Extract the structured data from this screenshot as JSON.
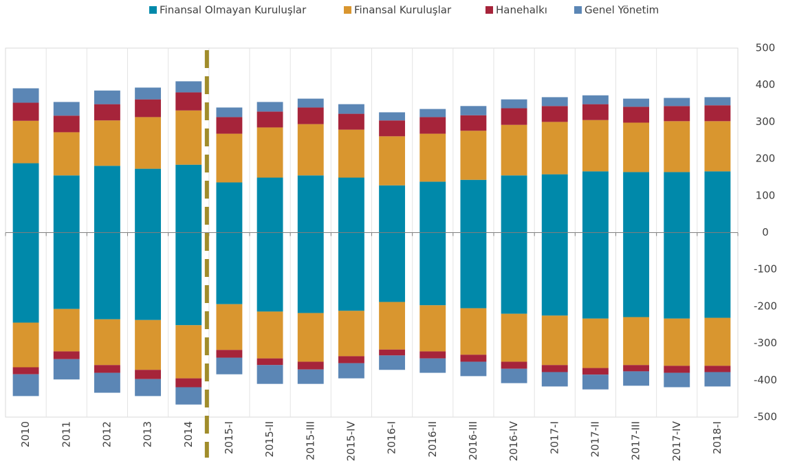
{
  "chart_data": {
    "type": "bar",
    "stacked": true,
    "categories": [
      "2010",
      "2011",
      "2012",
      "2013",
      "2014",
      "2015-I",
      "2015-II",
      "2015-III",
      "2015-IV",
      "2016-I",
      "2016-II",
      "2016-III",
      "2016-IV",
      "2017-I",
      "2017-II",
      "2017-III",
      "2017-IV",
      "2018-I"
    ],
    "series": [
      {
        "name": "Finansal Olmayan Kuruluşlar",
        "color": "#0089aa",
        "values": [
          188,
          155,
          181,
          173,
          184,
          136,
          149,
          155,
          149,
          128,
          138,
          143,
          155,
          158,
          166,
          164,
          164,
          166
        ],
        "negative_values": [
          -244,
          -207,
          -235,
          -237,
          -251,
          -194,
          -214,
          -218,
          -212,
          -188,
          -197,
          -205,
          -220,
          -225,
          -233,
          -229,
          -233,
          -231
        ]
      },
      {
        "name": "Finansal Kuruluşlar",
        "color": "#d9962f",
        "values": [
          115,
          117,
          123,
          140,
          147,
          132,
          136,
          139,
          130,
          133,
          130,
          133,
          137,
          142,
          139,
          134,
          138,
          136
        ],
        "negative_values": [
          -121,
          -115,
          -124,
          -135,
          -144,
          -124,
          -127,
          -132,
          -123,
          -129,
          -125,
          -126,
          -130,
          -134,
          -134,
          -130,
          -128,
          -130
        ]
      },
      {
        "name": "Hanehalkı",
        "color": "#a6243a",
        "values": [
          49,
          45,
          44,
          48,
          49,
          45,
          43,
          45,
          43,
          43,
          45,
          42,
          45,
          43,
          43,
          43,
          41,
          43
        ],
        "negative_values": [
          -19,
          -21,
          -21,
          -25,
          -24,
          -21,
          -18,
          -21,
          -19,
          -16,
          -19,
          -19,
          -19,
          -19,
          -18,
          -17,
          -19,
          -17
        ]
      },
      {
        "name": "Genel Yönetim",
        "color": "#5b86b5",
        "values": [
          39,
          37,
          37,
          32,
          30,
          26,
          26,
          24,
          26,
          22,
          22,
          25,
          24,
          24,
          24,
          22,
          22,
          22
        ],
        "negative_values": [
          -59,
          -55,
          -54,
          -46,
          -47,
          -45,
          -51,
          -39,
          -41,
          -39,
          -39,
          -39,
          -39,
          -39,
          -40,
          -39,
          -39,
          -39
        ]
      }
    ],
    "ylim": [
      -500,
      500
    ],
    "yticks": [
      -500,
      -400,
      -300,
      -200,
      -100,
      0,
      100,
      200,
      300,
      400,
      500
    ],
    "y_axis_side": "right",
    "legend": "top"
  }
}
